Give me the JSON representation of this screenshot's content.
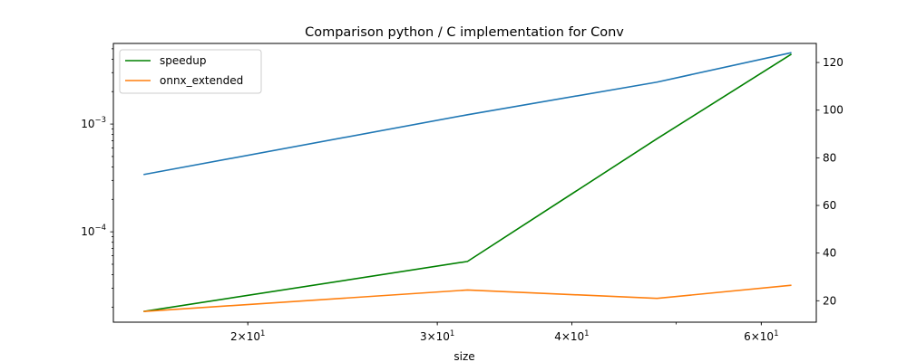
{
  "chart_data": {
    "type": "line",
    "title": "Comparison python / C implementation for Conv",
    "xlabel": "size",
    "x_scale": "log",
    "x": [
      16,
      32,
      48,
      64
    ],
    "x_ticks": [
      {
        "value": 20,
        "base": "2",
        "exp": "1"
      },
      {
        "value": 30,
        "base": "3",
        "exp": "1"
      },
      {
        "value": 40,
        "base": "4",
        "exp": "1"
      },
      {
        "value": 60,
        "base": "6",
        "exp": "1"
      }
    ],
    "left_axis": {
      "scale": "log",
      "ylim": [
        1.45e-05,
        0.0056
      ],
      "major_ticks": [
        {
          "value": 0.0001,
          "base": "10",
          "exp": "−4"
        },
        {
          "value": 0.001,
          "base": "10",
          "exp": "−3"
        }
      ],
      "series": [
        {
          "color": "#1f77b4",
          "values": [
            0.00034,
            0.00122,
            0.00245,
            0.0046
          ]
        }
      ]
    },
    "right_axis": {
      "scale": "linear",
      "ylim": [
        11,
        128
      ],
      "ticks": [
        "20",
        "40",
        "60",
        "80",
        "100",
        "120"
      ],
      "series": [
        {
          "name": "speedup",
          "color": "#008000",
          "values": [
            15.5,
            36.5,
            88,
            123.5
          ]
        },
        {
          "name": "onnx_extended",
          "color": "#ff7f0e",
          "values": [
            15.5,
            24.5,
            21,
            26.5
          ]
        }
      ]
    },
    "legend": {
      "placement": "top-left"
    },
    "grid": false
  }
}
